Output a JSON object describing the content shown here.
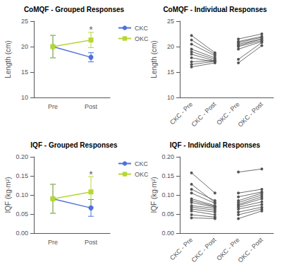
{
  "chart_data": [
    {
      "type": "errorbar",
      "title": "CoMQF - Grouped Responses",
      "ylabel": "Length (cm)",
      "categories": [
        "Pre",
        "Post"
      ],
      "series": [
        {
          "name": "CKC",
          "marker": "circle",
          "values": [
            20.0,
            17.9
          ],
          "errors": [
            2.2,
            0.9
          ]
        },
        {
          "name": "OKC",
          "marker": "square",
          "values": [
            20.0,
            21.3
          ],
          "errors": [
            2.2,
            1.5
          ]
        }
      ],
      "ylim": [
        10,
        25
      ],
      "yticks": [
        10,
        15,
        20,
        25
      ],
      "grid": false,
      "legend": "upper right",
      "annotations": [
        {
          "text": "*",
          "x": "Post",
          "y": 23.3
        }
      ]
    },
    {
      "type": "paired",
      "title": "CoMQF - Individual Responses",
      "ylabel": "Length (cm)",
      "categories": [
        "CKC - Pre",
        "CKC - Post",
        "OKC - Pre",
        "OKC - Post"
      ],
      "series": [
        {
          "pre": [
            22.2,
            21.3,
            20.5,
            19.5,
            19.0,
            18.5,
            17.8,
            17.0,
            16.5,
            16.0
          ],
          "post": [
            18.8,
            18.5,
            18.2,
            17.8,
            17.5,
            17.2,
            17.0,
            17.3,
            17.1,
            16.8
          ]
        },
        {
          "pre": [
            21.5,
            21.0,
            20.8,
            20.5,
            20.2,
            20.0,
            19.5,
            17.5,
            16.8
          ],
          "post": [
            22.5,
            22.0,
            21.8,
            21.5,
            21.5,
            21.2,
            21.0,
            20.8,
            20.2
          ]
        }
      ],
      "color": "#555555",
      "marker": "circle",
      "ylim": [
        10,
        25
      ],
      "yticks": [
        10,
        15,
        20,
        25
      ],
      "grid": false
    },
    {
      "type": "errorbar",
      "title": "IQF - Grouped Responses",
      "ylabel": "IQF (kg∙m²)",
      "categories": [
        "Pre",
        "Post"
      ],
      "series": [
        {
          "name": "CKC",
          "marker": "circle",
          "values": [
            0.09,
            0.066
          ],
          "errors": [
            0.038,
            0.022
          ]
        },
        {
          "name": "OKC",
          "marker": "square",
          "values": [
            0.09,
            0.108
          ],
          "errors": [
            0.038,
            0.04
          ]
        }
      ],
      "ylim": [
        0.0,
        0.2
      ],
      "yticks": [
        {
          "value": 0,
          "label": "0.00"
        },
        0.05,
        {
          "value": 0.1,
          "label": "0.10"
        },
        0.15,
        {
          "value": 0.2,
          "label": "0.20"
        }
      ],
      "grid": false,
      "legend": "upper right",
      "annotations": [
        {
          "text": "*",
          "x": "Post",
          "y": 0.154
        }
      ]
    },
    {
      "type": "paired",
      "title": "IQF - Individual Responses",
      "ylabel": "IQF (kg∙m²)",
      "categories": [
        "CKC - Pre",
        "CKC - Post",
        "OKC - Pre",
        "OKC - Post"
      ],
      "series": [
        {
          "pre": [
            0.158,
            0.128,
            0.115,
            0.105,
            0.09,
            0.085,
            0.08,
            0.072,
            0.068,
            0.063,
            0.058,
            0.048,
            0.04
          ],
          "post": [
            0.105,
            0.08,
            0.085,
            0.078,
            0.072,
            0.07,
            0.068,
            0.065,
            0.06,
            0.055,
            0.048,
            0.042,
            0.038
          ]
        },
        {
          "pre": [
            0.16,
            0.105,
            0.095,
            0.085,
            0.08,
            0.075,
            0.072,
            0.068,
            0.063,
            0.055,
            0.048,
            0.038
          ],
          "post": [
            0.168,
            0.115,
            0.108,
            0.105,
            0.1,
            0.095,
            0.09,
            0.082,
            0.075,
            0.068,
            0.063,
            0.058
          ]
        }
      ],
      "color": "#555555",
      "marker": "circle",
      "ylim": [
        0.0,
        0.2
      ],
      "yticks": [
        {
          "value": 0,
          "label": "0.00"
        },
        0.05,
        {
          "value": 0.1,
          "label": "0.10"
        },
        0.15,
        {
          "value": 0.2,
          "label": "0.20"
        }
      ],
      "grid": false
    }
  ]
}
